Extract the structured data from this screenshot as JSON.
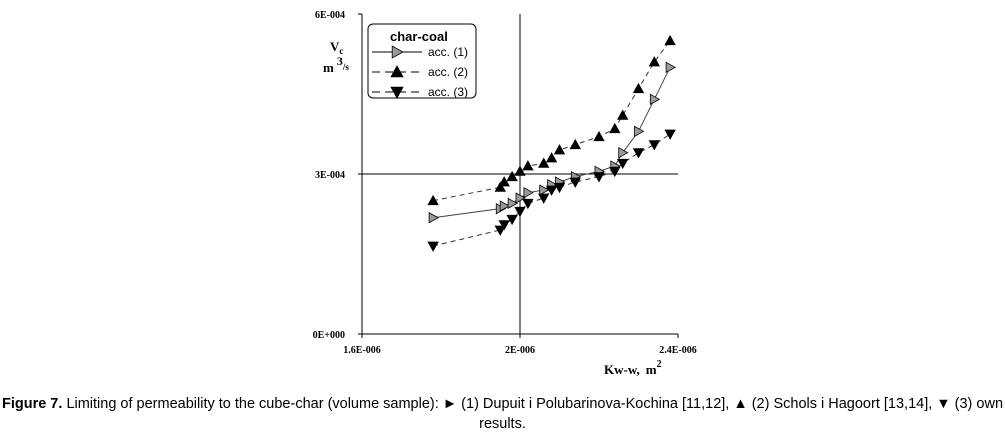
{
  "chart_data": {
    "type": "scatter",
    "title": "",
    "xlabel": {
      "main": "Kw-w,",
      "unit": "m",
      "unit_sup": "2"
    },
    "ylabel": {
      "main": "V",
      "main_sub": "c",
      "unit": "m",
      "unit_sup": "3",
      "unit_den": "/s"
    },
    "xlim": [
      1.6e-06,
      2.4e-06
    ],
    "ylim": [
      0,
      0.0006
    ],
    "xticks": [
      1.6e-06,
      2e-06,
      2.4e-06
    ],
    "xtick_labels": [
      "1.6E-006",
      "2E-006",
      "2.4E-006"
    ],
    "yticks": [
      0,
      0.0003,
      0.0006
    ],
    "ytick_labels": [
      "0E+000",
      "3E-004",
      "6E-004"
    ],
    "reference_lines": {
      "x": 2e-06,
      "y": 0.0003
    },
    "legend": {
      "title": "char-coal",
      "position": "top-left"
    },
    "series": [
      {
        "name": "acc. (1)",
        "marker": "triangle-right",
        "color": "#9a9a9a",
        "line": "solid",
        "points": [
          [
            1.78e-06,
            0.000218
          ],
          [
            1.95e-06,
            0.000235
          ],
          [
            1.96e-06,
            0.00024
          ],
          [
            1.98e-06,
            0.000245
          ],
          [
            2e-06,
            0.000255
          ],
          [
            2.02e-06,
            0.000265
          ],
          [
            2.06e-06,
            0.00027
          ],
          [
            2.08e-06,
            0.00028
          ],
          [
            2.1e-06,
            0.000285
          ],
          [
            2.14e-06,
            0.000295
          ],
          [
            2.2e-06,
            0.000305
          ],
          [
            2.24e-06,
            0.000315
          ],
          [
            2.26e-06,
            0.00034
          ],
          [
            2.3e-06,
            0.00038
          ],
          [
            2.34e-06,
            0.00044
          ],
          [
            2.38e-06,
            0.0005
          ]
        ]
      },
      {
        "name": "acc. (2)",
        "marker": "triangle-up",
        "color": "#000000",
        "line": "dashed",
        "points": [
          [
            1.78e-06,
            0.00025
          ],
          [
            1.95e-06,
            0.000275
          ],
          [
            1.96e-06,
            0.000285
          ],
          [
            1.98e-06,
            0.000295
          ],
          [
            2e-06,
            0.000305
          ],
          [
            2.02e-06,
            0.000315
          ],
          [
            2.06e-06,
            0.00032
          ],
          [
            2.08e-06,
            0.00033
          ],
          [
            2.1e-06,
            0.000345
          ],
          [
            2.14e-06,
            0.000355
          ],
          [
            2.2e-06,
            0.00037
          ],
          [
            2.24e-06,
            0.000385
          ],
          [
            2.26e-06,
            0.00041
          ],
          [
            2.3e-06,
            0.00046
          ],
          [
            2.34e-06,
            0.00051
          ],
          [
            2.38e-06,
            0.00055
          ]
        ]
      },
      {
        "name": "acc. (3)",
        "marker": "triangle-down",
        "color": "#000000",
        "line": "dashed",
        "points": [
          [
            1.78e-06,
            0.000165
          ],
          [
            1.95e-06,
            0.000195
          ],
          [
            1.96e-06,
            0.000205
          ],
          [
            1.98e-06,
            0.000215
          ],
          [
            2e-06,
            0.00023
          ],
          [
            2.02e-06,
            0.000245
          ],
          [
            2.06e-06,
            0.000255
          ],
          [
            2.08e-06,
            0.00027
          ],
          [
            2.1e-06,
            0.000275
          ],
          [
            2.14e-06,
            0.000285
          ],
          [
            2.2e-06,
            0.000295
          ],
          [
            2.24e-06,
            0.000305
          ],
          [
            2.26e-06,
            0.00032
          ],
          [
            2.3e-06,
            0.00034
          ],
          [
            2.34e-06,
            0.000355
          ],
          [
            2.38e-06,
            0.000375
          ]
        ]
      }
    ]
  },
  "caption": {
    "label": "Figure 7.",
    "text": "Limiting of permeability to the cube-char (volume sample): ► (1) Dupuit i Polubarinova-Kochina [11,12], ▲ (2) Schols i Hagoort [13,14], ▼ (3) own results."
  }
}
